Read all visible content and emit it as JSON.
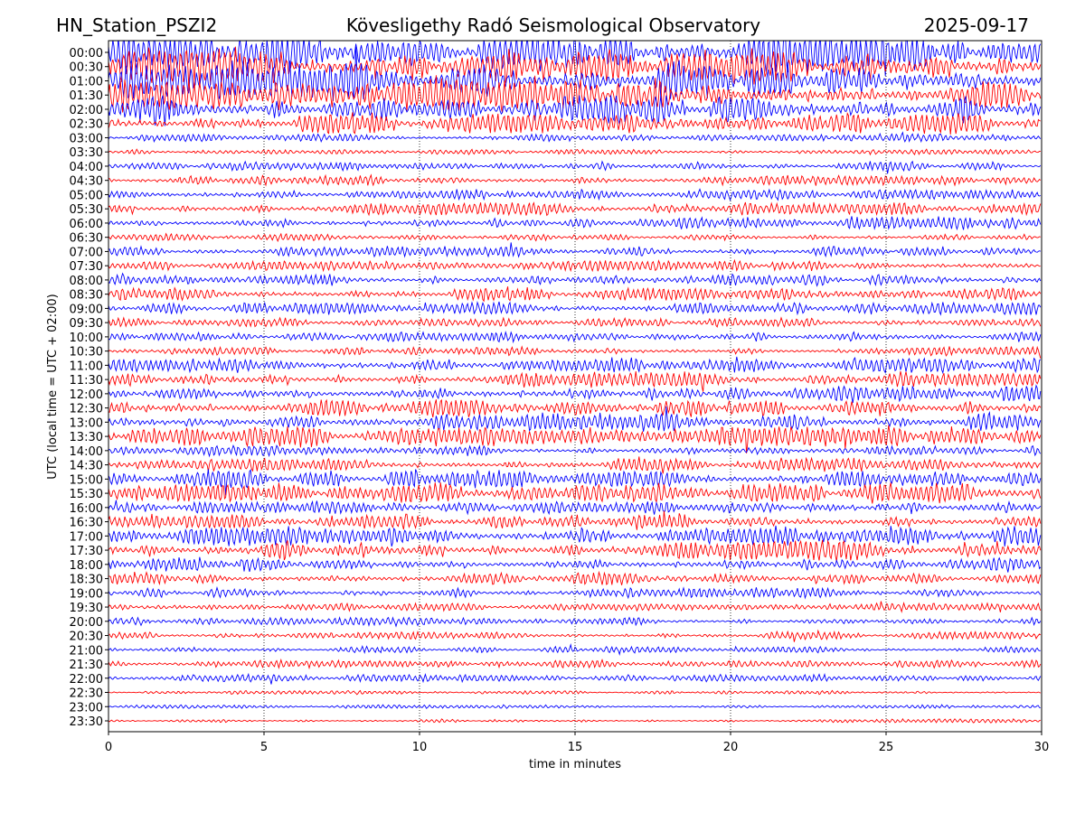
{
  "chart_data": {
    "type": "helicorder",
    "title_left": "HN_Station_PSZI2",
    "title": "Kövesligethy Radó Seismological Observatory",
    "title_right": "2025-09-17",
    "xlabel": "time in minutes",
    "ylabel": "UTC (local time = UTC + 02:00)",
    "xlim": [
      0,
      30
    ],
    "xticks": [
      0,
      5,
      10,
      15,
      20,
      25,
      30
    ],
    "grid": true,
    "colors": [
      "#0000ff",
      "#ff0000"
    ],
    "rows": [
      "00:00",
      "00:30",
      "01:00",
      "01:30",
      "02:00",
      "02:30",
      "03:00",
      "03:30",
      "04:00",
      "04:30",
      "05:00",
      "05:30",
      "06:00",
      "06:30",
      "07:00",
      "07:30",
      "08:00",
      "08:30",
      "09:00",
      "09:30",
      "10:00",
      "10:30",
      "11:00",
      "11:30",
      "12:00",
      "12:30",
      "13:00",
      "13:30",
      "14:00",
      "14:30",
      "15:00",
      "15:30",
      "16:00",
      "16:30",
      "17:00",
      "17:30",
      "18:00",
      "18:30",
      "19:00",
      "19:30",
      "20:00",
      "20:30",
      "21:00",
      "21:30",
      "22:00",
      "22:30",
      "23:00",
      "23:30"
    ],
    "amplitudes": [
      1.5,
      1.5,
      1.5,
      1.3,
      1.2,
      0.8,
      0.3,
      0.2,
      0.35,
      0.4,
      0.4,
      0.5,
      0.5,
      0.3,
      0.4,
      0.4,
      0.5,
      0.5,
      0.5,
      0.35,
      0.4,
      0.35,
      0.6,
      0.6,
      0.7,
      0.8,
      0.7,
      0.8,
      0.4,
      0.5,
      0.7,
      0.8,
      0.5,
      0.6,
      0.8,
      0.8,
      0.6,
      0.5,
      0.4,
      0.3,
      0.3,
      0.3,
      0.25,
      0.3,
      0.3,
      0.15,
      0.15,
      0.15
    ]
  }
}
